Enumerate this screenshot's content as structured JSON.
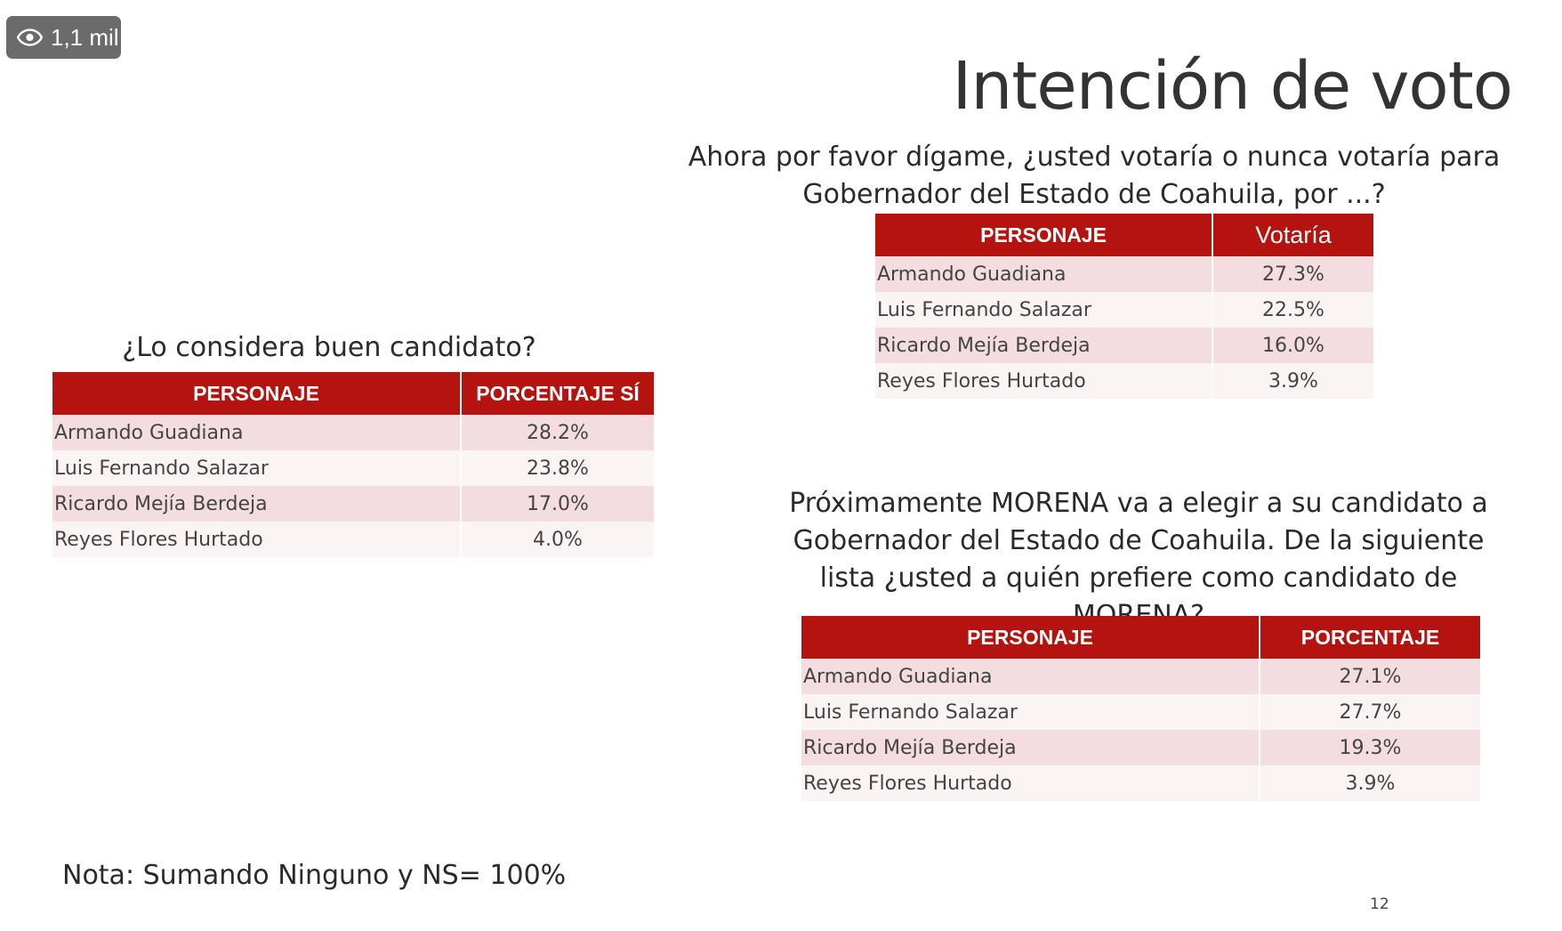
{
  "view_badge": {
    "icon": "eye-icon",
    "count": "1,1 mil"
  },
  "slide": {
    "title": "Intención de voto",
    "page_number": "12",
    "note": "Nota: Sumando Ninguno y NS= 100%"
  },
  "tables": {
    "votaria": {
      "question": "Ahora por favor dígame, ¿usted votaría o nunca votaría para Gobernador del Estado de Coahuila, por ...?",
      "headers": [
        "PERSONAJE",
        "Votaría"
      ],
      "rows": [
        [
          "Armando Guadiana",
          "27.3%"
        ],
        [
          "Luis Fernando Salazar",
          "22.5%"
        ],
        [
          "Ricardo Mejía Berdeja",
          "16.0%"
        ],
        [
          "Reyes Flores Hurtado",
          "3.9%"
        ]
      ]
    },
    "buen_candidato": {
      "question": "¿Lo considera buen candidato?",
      "headers": [
        "PERSONAJE",
        "PORCENTAJE SÍ"
      ],
      "rows": [
        [
          "Armando Guadiana",
          "28.2%"
        ],
        [
          "Luis Fernando Salazar",
          "23.8%"
        ],
        [
          "Ricardo Mejía Berdeja",
          "17.0%"
        ],
        [
          "Reyes Flores Hurtado",
          "4.0%"
        ]
      ]
    },
    "candidato_morena": {
      "question": "Próximamente MORENA va a elegir a su candidato a Gobernador del Estado de Coahuila. De la siguiente lista ¿usted a quién prefiere como candidato de MORENA?",
      "headers": [
        "PERSONAJE",
        "PORCENTAJE"
      ],
      "rows": [
        [
          "Armando Guadiana",
          "27.1%"
        ],
        [
          "Luis Fernando Salazar",
          "27.7%"
        ],
        [
          "Ricardo Mejía Berdeja",
          "19.3%"
        ],
        [
          "Reyes Flores Hurtado",
          "3.9%"
        ]
      ]
    }
  },
  "colors": {
    "header_red": "#b5130f",
    "row_pink": "#f3dde1",
    "row_light": "#fbf4f5",
    "badge_gray": "#6b6b6b"
  }
}
